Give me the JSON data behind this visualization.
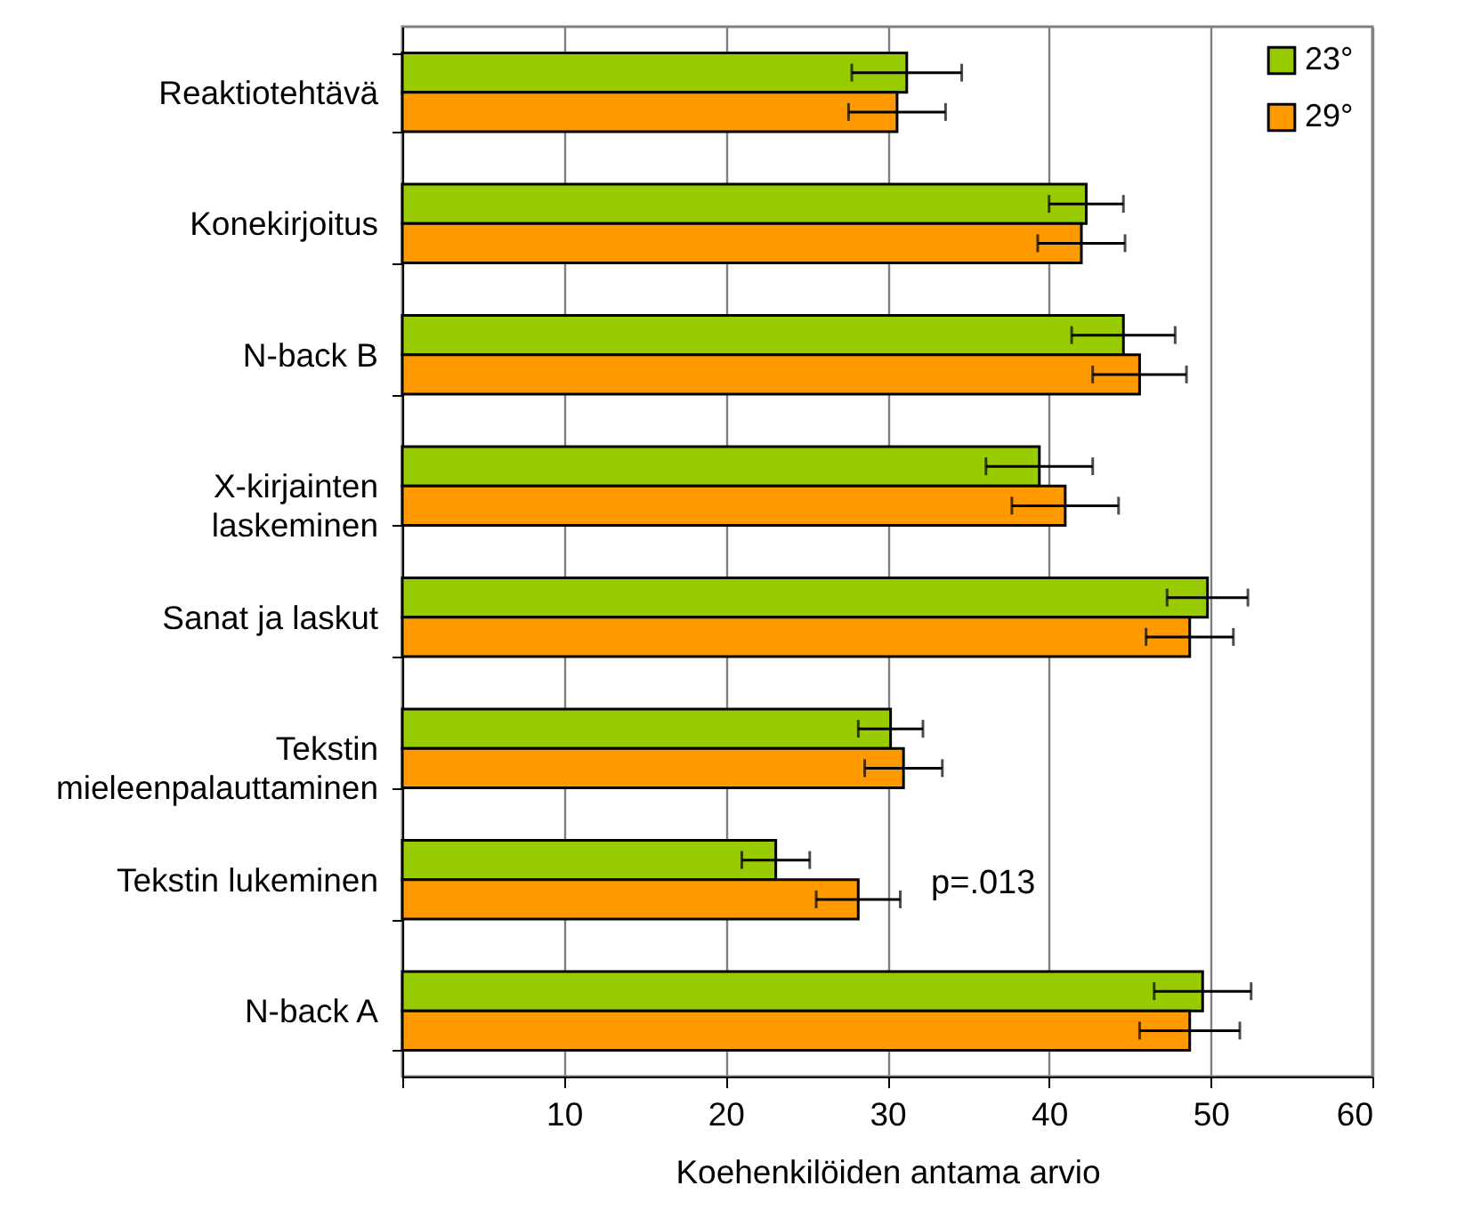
{
  "chart_data": {
    "type": "bar",
    "orientation": "horizontal",
    "xlabel": "Koehenkilöiden antama arvio",
    "categories": [
      "Reaktiotehtävä",
      "Konekirjoitus",
      "N-back B",
      "X-kirjainten\nlaskeminen",
      "Sanat ja laskut",
      "Tekstin\nmieleenpalauttaminen",
      "Tekstin lukeminen",
      "N-back A"
    ],
    "series": [
      {
        "name": "23°",
        "color": "#99cc00",
        "values": [
          31.2,
          42.3,
          44.6,
          39.4,
          49.8,
          30.2,
          23.1,
          49.5
        ],
        "errors": [
          3.4,
          2.3,
          3.2,
          3.3,
          2.5,
          2.0,
          2.1,
          3.0
        ]
      },
      {
        "name": "29°",
        "color": "#ff9900",
        "values": [
          30.6,
          42.0,
          45.6,
          41.0,
          48.7,
          31.0,
          28.2,
          48.7
        ],
        "errors": [
          3.0,
          2.7,
          2.9,
          3.3,
          2.7,
          2.4,
          2.6,
          3.1
        ]
      }
    ],
    "xlim": [
      0,
      60
    ],
    "xticks": [
      {
        "value": 0,
        "label": null
      },
      10,
      20,
      30,
      40,
      50,
      60
    ],
    "grid": "x",
    "legend": "top right",
    "annotations": [
      "p=.013"
    ]
  }
}
